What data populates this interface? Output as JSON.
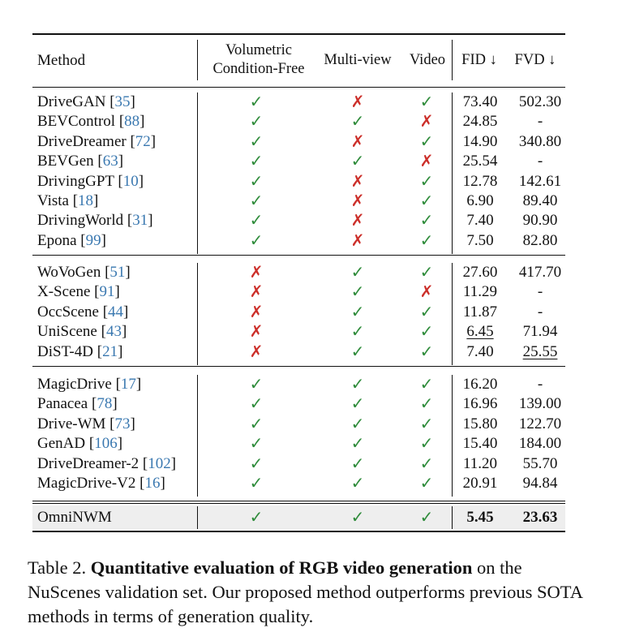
{
  "headers": {
    "method": "Method",
    "vol_line1": "Volumetric",
    "vol_line2": "Condition-Free",
    "multiview": "Multi-view",
    "video": "Video",
    "fid": "FID ↓",
    "fvd": "FVD ↓"
  },
  "groups": [
    [
      {
        "name": "DriveGAN",
        "ref": "35",
        "vol": true,
        "mv": false,
        "vid": true,
        "fid": "73.40",
        "fvd": "502.30"
      },
      {
        "name": "BEVControl",
        "ref": "88",
        "vol": true,
        "mv": true,
        "vid": false,
        "fid": "24.85",
        "fvd": "-"
      },
      {
        "name": "DriveDreamer",
        "ref": "72",
        "vol": true,
        "mv": false,
        "vid": true,
        "fid": "14.90",
        "fvd": "340.80"
      },
      {
        "name": "BEVGen",
        "ref": "63",
        "vol": true,
        "mv": true,
        "vid": false,
        "fid": "25.54",
        "fvd": "-"
      },
      {
        "name": "DrivingGPT",
        "ref": "10",
        "vol": true,
        "mv": false,
        "vid": true,
        "fid": "12.78",
        "fvd": "142.61"
      },
      {
        "name": "Vista",
        "ref": "18",
        "vol": true,
        "mv": false,
        "vid": true,
        "fid": "6.90",
        "fvd": "89.40"
      },
      {
        "name": "DrivingWorld",
        "ref": "31",
        "vol": true,
        "mv": false,
        "vid": true,
        "fid": "7.40",
        "fvd": "90.90"
      },
      {
        "name": "Epona",
        "ref": "99",
        "vol": true,
        "mv": false,
        "vid": true,
        "fid": "7.50",
        "fvd": "82.80"
      }
    ],
    [
      {
        "name": "WoVoGen",
        "ref": "51",
        "vol": false,
        "mv": true,
        "vid": true,
        "fid": "27.60",
        "fvd": "417.70"
      },
      {
        "name": "X-Scene",
        "ref": "91",
        "vol": false,
        "mv": true,
        "vid": false,
        "fid": "11.29",
        "fvd": "-"
      },
      {
        "name": "OccScene",
        "ref": "44",
        "vol": false,
        "mv": true,
        "vid": true,
        "fid": "11.87",
        "fvd": "-"
      },
      {
        "name": "UniScene",
        "ref": "43",
        "vol": false,
        "mv": true,
        "vid": true,
        "fid": "6.45",
        "fvd": "71.94",
        "fid_ul": true
      },
      {
        "name": "DiST-4D",
        "ref": "21",
        "vol": false,
        "mv": true,
        "vid": true,
        "fid": "7.40",
        "fvd": "25.55",
        "fvd_ul": true
      }
    ],
    [
      {
        "name": "MagicDrive",
        "ref": "17",
        "vol": true,
        "mv": true,
        "vid": true,
        "fid": "16.20",
        "fvd": "-"
      },
      {
        "name": "Panacea",
        "ref": "78",
        "vol": true,
        "mv": true,
        "vid": true,
        "fid": "16.96",
        "fvd": "139.00"
      },
      {
        "name": "Drive-WM",
        "ref": "73",
        "vol": true,
        "mv": true,
        "vid": true,
        "fid": "15.80",
        "fvd": "122.70"
      },
      {
        "name": "GenAD",
        "ref": "106",
        "vol": true,
        "mv": true,
        "vid": true,
        "fid": "15.40",
        "fvd": "184.00"
      },
      {
        "name": "DriveDreamer-2",
        "ref": "102",
        "vol": true,
        "mv": true,
        "vid": true,
        "fid": "11.20",
        "fvd": "55.70"
      },
      {
        "name": "MagicDrive-V2",
        "ref": "16",
        "vol": true,
        "mv": true,
        "vid": true,
        "fid": "20.91",
        "fvd": "94.84"
      }
    ]
  ],
  "ours": {
    "name": "OmniNWM",
    "vol": true,
    "mv": true,
    "vid": true,
    "fid": "5.45",
    "fvd": "23.63"
  },
  "symbols": {
    "check": "✓",
    "cross": "✗"
  },
  "caption": {
    "label": "Table 2.",
    "bold": "Quantitative evaluation of RGB video generation",
    "rest": "on the NuScenes validation set. Our proposed method outperforms previous SOTA methods in terms of generation quality."
  }
}
